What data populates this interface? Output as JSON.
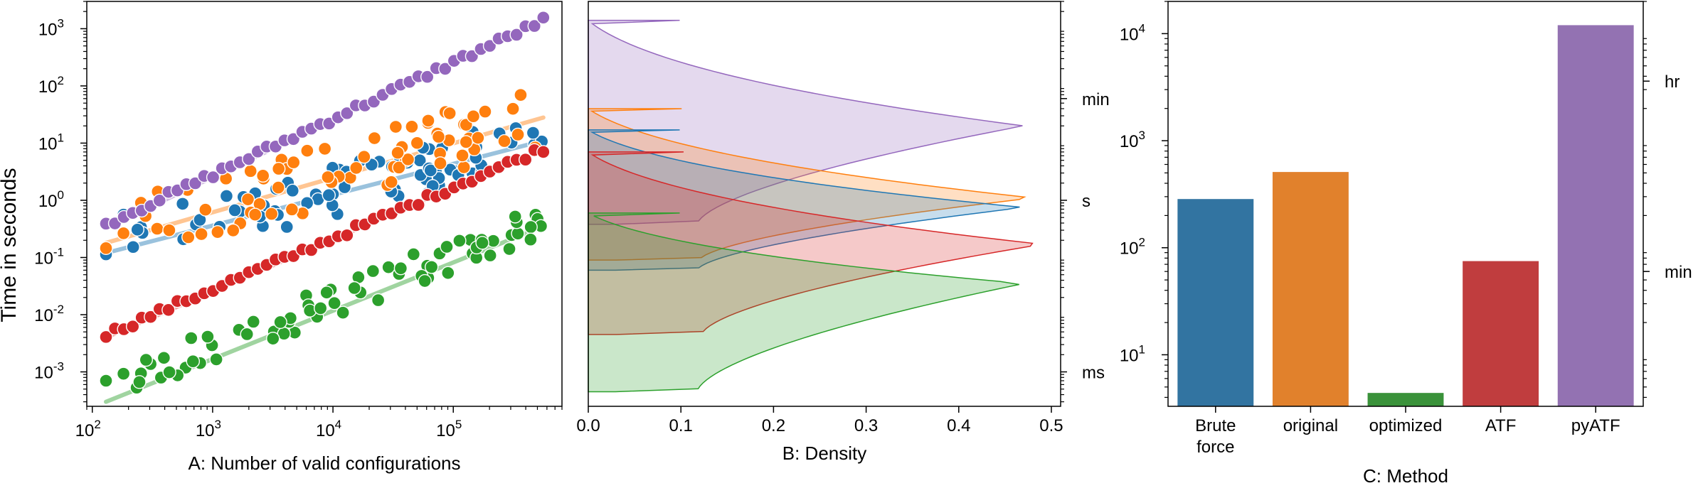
{
  "chart_data": [
    {
      "panel": "A",
      "type": "scatter",
      "xlabel": "A: Number of valid configurations",
      "ylabel": "Time in seconds",
      "xscale": "log",
      "yscale": "log",
      "xlim": [
        90,
        800000
      ],
      "ylim": [
        0.00025,
        3000
      ],
      "xticks": [
        {
          "value": 100,
          "base": "10",
          "exp": "2"
        },
        {
          "value": 1000,
          "base": "10",
          "exp": "3"
        },
        {
          "value": 10000,
          "base": "10",
          "exp": "4"
        },
        {
          "value": 100000,
          "base": "10",
          "exp": "5"
        }
      ],
      "yticks": [
        {
          "value": 0.001,
          "base": "10",
          "exp": "-3"
        },
        {
          "value": 0.01,
          "base": "10",
          "exp": "-2"
        },
        {
          "value": 0.1,
          "base": "10",
          "exp": "-1"
        },
        {
          "value": 1,
          "base": "10",
          "exp": "0"
        },
        {
          "value": 10,
          "base": "10",
          "exp": "1"
        },
        {
          "value": 100,
          "base": "10",
          "exp": "2"
        },
        {
          "value": 1000,
          "base": "10",
          "exp": "3"
        }
      ],
      "series": [
        {
          "name": "Brute force",
          "color": "#1f77b4",
          "fit": {
            "x": [
              130,
              560000
            ],
            "y": [
              0.12,
              11
            ]
          },
          "x_min": 130,
          "x_max": 560000,
          "y_start": 0.17,
          "y_end": 11,
          "spread": 0.45,
          "n_points": 75
        },
        {
          "name": "original",
          "color": "#ff7f0e",
          "fit": {
            "x": [
              130,
              560000
            ],
            "y": [
              0.18,
              28
            ]
          },
          "x_min": 130,
          "x_max": 560000,
          "y_start": 0.23,
          "y_end": 30,
          "spread": 0.55,
          "n_points": 75
        },
        {
          "name": "optimized",
          "color": "#2ca02c",
          "fit": {
            "x": [
              130,
              560000
            ],
            "y": [
              0.0003,
              0.35
            ]
          },
          "x_min": 130,
          "x_max": 560000,
          "y_start": 0.00055,
          "y_end": 0.42,
          "spread": 0.3,
          "n_points": 75
        },
        {
          "name": "ATF",
          "color": "#d62728",
          "fit": {
            "x": [
              130,
              560000
            ],
            "y": [
              0.004,
              8
            ]
          },
          "x_min": 130,
          "x_max": 560000,
          "y_start": 0.0045,
          "y_end": 8,
          "spread": 0.06,
          "n_points": 50
        },
        {
          "name": "pyATF",
          "color": "#9467bd",
          "fit": {
            "x": [
              130,
              560000
            ],
            "y": [
              0.33,
              1400
            ]
          },
          "x_min": 130,
          "x_max": 560000,
          "y_start": 0.38,
          "y_end": 1400,
          "spread": 0.06,
          "n_points": 50
        }
      ]
    },
    {
      "panel": "B",
      "type": "area",
      "orientation": "horizontal-density",
      "xlabel": "B: Density",
      "xlim": [
        0,
        0.51
      ],
      "xticks": [
        "0.0",
        "0.1",
        "0.2",
        "0.3",
        "0.4",
        "0.5"
      ],
      "ylim": [
        0.00025,
        3000
      ],
      "yscale": "log",
      "right_ticks": [
        {
          "label": "min",
          "value": 60
        },
        {
          "label": "s",
          "value": 1
        },
        {
          "label": "ms",
          "value": 0.001
        }
      ],
      "series": [
        {
          "name": "pyATF",
          "color": "#9467bd",
          "y_min": 0.38,
          "y_peak": 20,
          "y_max": 1400,
          "peak_density": 0.47
        },
        {
          "name": "original",
          "color": "#ff7f0e",
          "y_min": 0.09,
          "y_peak": 1.1,
          "y_max": 40,
          "peak_density": 0.48
        },
        {
          "name": "Brute force",
          "color": "#1f77b4",
          "y_min": 0.06,
          "y_peak": 0.75,
          "y_max": 17,
          "peak_density": 0.47
        },
        {
          "name": "ATF",
          "color": "#d62728",
          "y_min": 0.0045,
          "y_peak": 0.17,
          "y_max": 7,
          "peak_density": 0.49
        },
        {
          "name": "optimized",
          "color": "#2ca02c",
          "y_min": 0.00045,
          "y_peak": 0.035,
          "y_max": 0.6,
          "peak_density": 0.47
        }
      ]
    },
    {
      "panel": "C",
      "type": "bar",
      "xlabel": "C: Method",
      "yscale": "log",
      "ylim": [
        3.3,
        20000
      ],
      "yticks": [
        {
          "value": 10,
          "base": "10",
          "exp": "1"
        },
        {
          "value": 100,
          "base": "10",
          "exp": "2"
        },
        {
          "value": 1000,
          "base": "10",
          "exp": "3"
        },
        {
          "value": 10000,
          "base": "10",
          "exp": "4"
        }
      ],
      "right_ticks": [
        {
          "label": "hr",
          "value": 3600
        },
        {
          "label": "min",
          "value": 60
        }
      ],
      "categories": [
        [
          "Brute",
          "force"
        ],
        [
          "original"
        ],
        [
          "optimized"
        ],
        [
          "ATF"
        ],
        [
          "pyATF"
        ]
      ],
      "values": [
        285,
        510,
        4.4,
        75,
        12000
      ],
      "colors": [
        "#3274a1",
        "#e1812c",
        "#3a923a",
        "#c03d3e",
        "#9372b2"
      ]
    }
  ]
}
